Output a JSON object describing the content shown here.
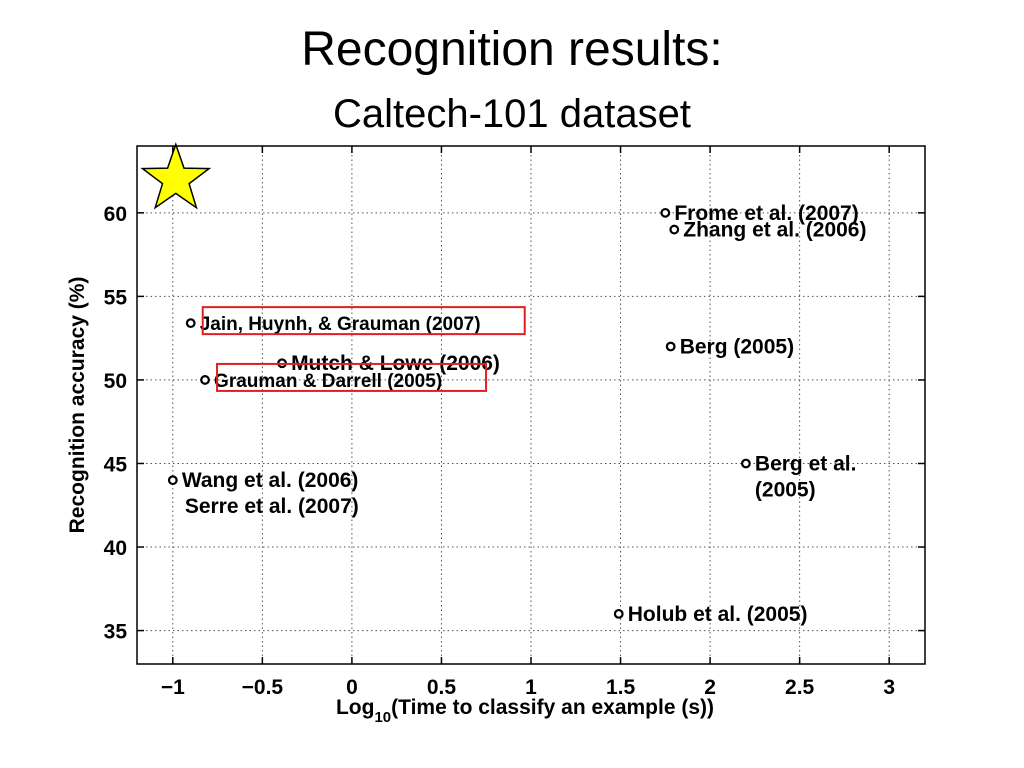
{
  "slide": {
    "title": "Recognition results:",
    "subtitle": "Caltech-101 dataset"
  },
  "chart_data": {
    "type": "scatter",
    "xlabel_main": "Log",
    "xlabel_sub": "10",
    "xlabel_rest": "(Time to classify an example (s))",
    "ylabel": "Recognition accuracy (%)",
    "xlim": [
      -1.2,
      3.2
    ],
    "ylim": [
      33,
      64
    ],
    "xticks": [
      -1,
      -0.5,
      0,
      0.5,
      1,
      1.5,
      2,
      2.5,
      3
    ],
    "xtick_labels": [
      "−1",
      "−0.5",
      "0",
      "0.5",
      "1",
      "1.5",
      "2",
      "2.5",
      "3"
    ],
    "yticks": [
      35,
      40,
      45,
      50,
      55,
      60
    ],
    "ytick_labels": [
      "35",
      "40",
      "45",
      "50",
      "55",
      "60"
    ],
    "grid": true,
    "marker_color": "#000000",
    "highlight_color": "#e02020",
    "star_color": "#ffff00",
    "star": {
      "x": -1,
      "y": 62
    },
    "points": [
      {
        "label": "Frome et al. (2007)",
        "x": 1.75,
        "y": 60,
        "highlight": false
      },
      {
        "label": "Zhang et al. (2006)",
        "x": 1.8,
        "y": 59,
        "highlight": false
      },
      {
        "label": "Jain, Huynh, & Grauman (2007)",
        "x": -0.9,
        "y": 53.4,
        "highlight": true
      },
      {
        "label": "Berg (2005)",
        "x": 1.78,
        "y": 52,
        "highlight": false
      },
      {
        "label": "Mutch & Lowe (2006)",
        "x": -0.39,
        "y": 51,
        "highlight": false
      },
      {
        "label": "Grauman & Darrell (2005)",
        "x": -0.82,
        "y": 50,
        "highlight": true
      },
      {
        "label": "Berg et al. (2005)",
        "label_lines": [
          "Berg et al.",
          "(2005)"
        ],
        "x": 2.2,
        "y": 45,
        "highlight": false
      },
      {
        "label": "Wang et al. (2006)",
        "label_lines": [
          "Wang et al. (2006)",
          "Serre et al. (2007)"
        ],
        "x": -1,
        "y": 44,
        "highlight": false
      },
      {
        "label": "Holub et al. (2005)",
        "x": 1.49,
        "y": 36,
        "highlight": false
      }
    ]
  }
}
